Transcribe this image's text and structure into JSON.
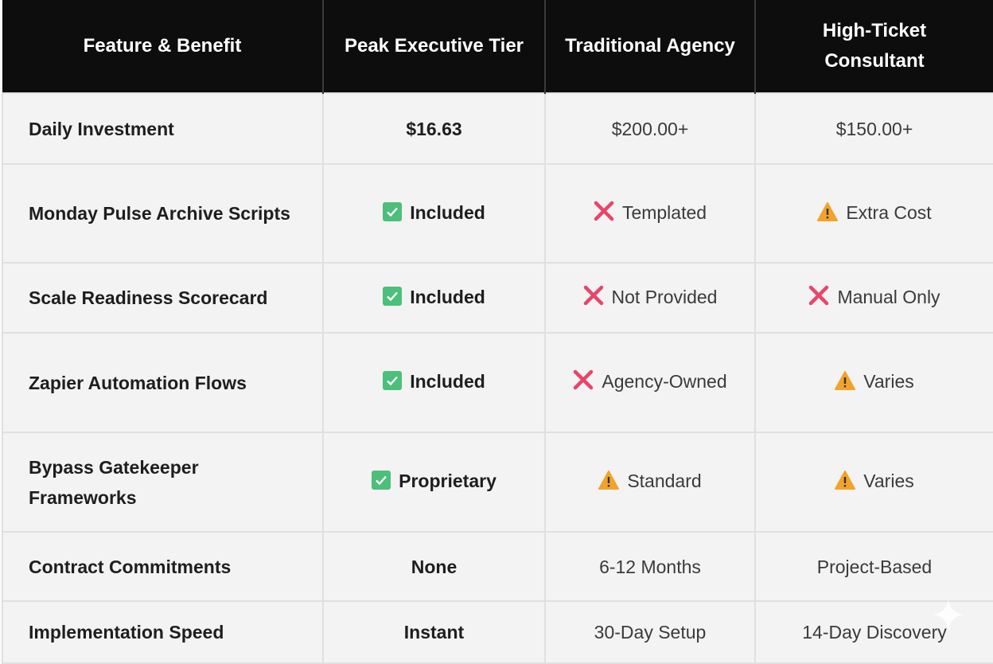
{
  "colors": {
    "header_bg": "#0d0d0d",
    "check": "#4cbf7a",
    "cross": "#e8456a",
    "warning": "#f2a32b"
  },
  "header": {
    "columns": [
      "Feature & Benefit",
      "Peak Executive Tier",
      "Traditional Agency",
      "High-Ticket Consultant"
    ]
  },
  "rows": [
    {
      "feature": "Daily Investment",
      "cells": [
        {
          "icon": "",
          "text": "$16.63",
          "bold": true
        },
        {
          "icon": "",
          "text": "$200.00+"
        },
        {
          "icon": "",
          "text": "$150.00+"
        }
      ]
    },
    {
      "feature": "Monday Pulse Archive Scripts",
      "cells": [
        {
          "icon": "check",
          "text": "Included",
          "bold": true
        },
        {
          "icon": "cross",
          "text": "Templated"
        },
        {
          "icon": "warning",
          "text": "Extra Cost"
        }
      ]
    },
    {
      "feature": "Scale Readiness Scorecard",
      "cells": [
        {
          "icon": "check",
          "text": "Included",
          "bold": true
        },
        {
          "icon": "cross",
          "text": "Not Provided"
        },
        {
          "icon": "cross",
          "text": "Manual Only"
        }
      ]
    },
    {
      "feature": "Zapier Automation Flows",
      "cells": [
        {
          "icon": "check",
          "text": "Included",
          "bold": true
        },
        {
          "icon": "cross",
          "text": "Agency-Owned"
        },
        {
          "icon": "warning",
          "text": "Varies"
        }
      ]
    },
    {
      "feature": "Bypass Gatekeeper Frameworks",
      "cells": [
        {
          "icon": "check",
          "text": "Proprietary",
          "bold": true
        },
        {
          "icon": "warning",
          "text": "Standard"
        },
        {
          "icon": "warning",
          "text": "Varies"
        }
      ]
    },
    {
      "feature": "Contract Commitments",
      "cells": [
        {
          "icon": "",
          "text": "None",
          "bold": true
        },
        {
          "icon": "",
          "text": "6-12 Months"
        },
        {
          "icon": "",
          "text": "Project-Based"
        }
      ]
    },
    {
      "feature": "Implementation Speed",
      "cells": [
        {
          "icon": "",
          "text": "Instant",
          "bold": true
        },
        {
          "icon": "",
          "text": "30-Day Setup"
        },
        {
          "icon": "",
          "text": "14-Day Discovery"
        }
      ]
    }
  ]
}
